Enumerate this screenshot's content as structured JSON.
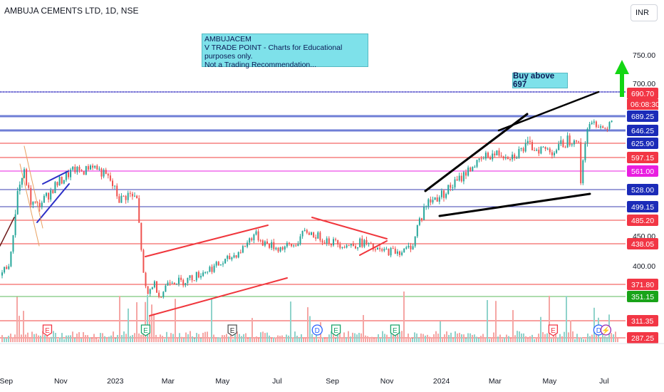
{
  "header": {
    "title": "AMBUJA CEMENTS LTD, 1D, NSE",
    "currency": "INR"
  },
  "annotations": {
    "note_lines": [
      "AMBUJACEM",
      "V TRADE POINT - Charts for Educational purposes only.",
      "Not a Trading Recommendation..."
    ],
    "buy_label": "Buy above 697"
  },
  "chart_data": {
    "type": "candlestick",
    "title": "AMBUJA CEMENTS LTD, 1D, NSE",
    "xlabel": "",
    "ylabel": "",
    "y_scale": "log",
    "ylim": [
      340,
      820
    ],
    "x_range": [
      "2022-08-25",
      "2024-07-25"
    ],
    "x_ticks": [
      {
        "label": "Sep",
        "date": "2022-09-01"
      },
      {
        "label": "Nov",
        "date": "2022-11-01"
      },
      {
        "label": "2023",
        "date": "2023-01-01"
      },
      {
        "label": "Mar",
        "date": "2023-03-01"
      },
      {
        "label": "May",
        "date": "2023-05-01"
      },
      {
        "label": "Jul",
        "date": "2023-07-01"
      },
      {
        "label": "Sep",
        "date": "2023-09-01"
      },
      {
        "label": "Nov",
        "date": "2023-11-01"
      },
      {
        "label": "2024",
        "date": "2024-01-01"
      },
      {
        "label": "Mar",
        "date": "2024-03-01"
      },
      {
        "label": "May",
        "date": "2024-05-01"
      },
      {
        "label": "Jul",
        "date": "2024-07-01"
      }
    ],
    "y_axis_ticks": [
      {
        "label": "750.00",
        "value": 750
      },
      {
        "label": "700.00",
        "value": 700
      },
      {
        "label": "450.00",
        "value": 450
      },
      {
        "label": "400.00",
        "value": 400
      }
    ],
    "horizontal_levels": [
      {
        "value": 690.7,
        "label": "690.70",
        "color": "#f23645",
        "line": "#4b46c8",
        "kind": "last"
      },
      {
        "value": 689.25,
        "label": "689.25",
        "color": "#1b2bb8",
        "line": "#6f7ed6",
        "kind": "level"
      },
      {
        "value": 646.25,
        "label": "646.25",
        "color": "#1b2bb8",
        "line": "#6f7ed6",
        "kind": "level"
      },
      {
        "value": 625.9,
        "label": "625.90",
        "color": "#1b2bb8",
        "line": "#f0403f",
        "kind": "level"
      },
      {
        "value": 597.15,
        "label": "597.15",
        "color": "#f23645",
        "line": "#f0403f",
        "kind": "level"
      },
      {
        "value": 561.0,
        "label": "561.00",
        "color": "#e91ee0",
        "line": "#e91ee0",
        "kind": "level"
      },
      {
        "value": 528.0,
        "label": "528.00",
        "color": "#1b2bb8",
        "line": "#3b3fb0",
        "kind": "level"
      },
      {
        "value": 499.15,
        "label": "499.15",
        "color": "#1b2bb8",
        "line": "#3b3fb0",
        "kind": "level"
      },
      {
        "value": 485.2,
        "label": "485.20",
        "color": "#f23645",
        "line": "#f0403f",
        "kind": "level"
      },
      {
        "value": 438.05,
        "label": "438.05",
        "color": "#f23645",
        "line": "#f0403f",
        "kind": "level"
      },
      {
        "value": 371.8,
        "label": "371.80",
        "color": "#f23645",
        "line": "#f0403f",
        "kind": "level"
      },
      {
        "value": 351.15,
        "label": "351.15",
        "color": "#19a319",
        "line": "#5cb85c",
        "kind": "level"
      },
      {
        "value": 311.35,
        "label": "311.35",
        "color": "#f23645",
        "line": "#f0403f",
        "kind": "level"
      },
      {
        "value": 287.25,
        "label": "287.25",
        "color": "#f23645",
        "line": "#f0403f",
        "kind": "level"
      }
    ],
    "last_price": {
      "value": 690.7,
      "label": "690.70",
      "countdown": "06:08:30"
    },
    "price_path": [
      {
        "date": "2022-08-25",
        "close": 385
      },
      {
        "date": "2022-09-05",
        "close": 410
      },
      {
        "date": "2022-09-12",
        "close": 520
      },
      {
        "date": "2022-09-20",
        "close": 560
      },
      {
        "date": "2022-09-28",
        "close": 505
      },
      {
        "date": "2022-10-05",
        "close": 500
      },
      {
        "date": "2022-10-15",
        "close": 515
      },
      {
        "date": "2022-10-25",
        "close": 535
      },
      {
        "date": "2022-11-05",
        "close": 550
      },
      {
        "date": "2022-11-15",
        "close": 565
      },
      {
        "date": "2022-11-25",
        "close": 560
      },
      {
        "date": "2022-12-05",
        "close": 578
      },
      {
        "date": "2022-12-15",
        "close": 560
      },
      {
        "date": "2022-12-25",
        "close": 545
      },
      {
        "date": "2023-01-05",
        "close": 510
      },
      {
        "date": "2023-01-15",
        "close": 520
      },
      {
        "date": "2023-01-25",
        "close": 510
      },
      {
        "date": "2023-02-01",
        "close": 380
      },
      {
        "date": "2023-02-05",
        "close": 352
      },
      {
        "date": "2023-02-12",
        "close": 375
      },
      {
        "date": "2023-02-20",
        "close": 350
      },
      {
        "date": "2023-03-01",
        "close": 380
      },
      {
        "date": "2023-03-15",
        "close": 375
      },
      {
        "date": "2023-04-01",
        "close": 385
      },
      {
        "date": "2023-04-15",
        "close": 395
      },
      {
        "date": "2023-05-01",
        "close": 405
      },
      {
        "date": "2023-05-20",
        "close": 425
      },
      {
        "date": "2023-06-05",
        "close": 455
      },
      {
        "date": "2023-06-15",
        "close": 440
      },
      {
        "date": "2023-07-01",
        "close": 430
      },
      {
        "date": "2023-07-20",
        "close": 435
      },
      {
        "date": "2023-08-01",
        "close": 460
      },
      {
        "date": "2023-08-15",
        "close": 450
      },
      {
        "date": "2023-09-01",
        "close": 440
      },
      {
        "date": "2023-09-20",
        "close": 435
      },
      {
        "date": "2023-10-05",
        "close": 440
      },
      {
        "date": "2023-10-20",
        "close": 425
      },
      {
        "date": "2023-11-05",
        "close": 425
      },
      {
        "date": "2023-11-20",
        "close": 425
      },
      {
        "date": "2023-12-01",
        "close": 440
      },
      {
        "date": "2023-12-05",
        "close": 480
      },
      {
        "date": "2023-12-15",
        "close": 505
      },
      {
        "date": "2024-01-01",
        "close": 520
      },
      {
        "date": "2024-01-20",
        "close": 545
      },
      {
        "date": "2024-02-05",
        "close": 575
      },
      {
        "date": "2024-02-20",
        "close": 600
      },
      {
        "date": "2024-03-05",
        "close": 605
      },
      {
        "date": "2024-03-20",
        "close": 600
      },
      {
        "date": "2024-04-05",
        "close": 620
      },
      {
        "date": "2024-04-20",
        "close": 615
      },
      {
        "date": "2024-05-05",
        "close": 610
      },
      {
        "date": "2024-05-20",
        "close": 630
      },
      {
        "date": "2024-06-01",
        "close": 640
      },
      {
        "date": "2024-06-04",
        "close": 540
      },
      {
        "date": "2024-06-10",
        "close": 650
      },
      {
        "date": "2024-06-20",
        "close": 670
      },
      {
        "date": "2024-07-01",
        "close": 650
      },
      {
        "date": "2024-07-10",
        "close": 690.7
      }
    ],
    "volume_range": [
      0,
      1
    ]
  },
  "event_markers": [
    {
      "date": "2022-10-17",
      "letter": "E",
      "kind": "earnings-red"
    },
    {
      "date": "2023-02-04",
      "letter": "E",
      "kind": "earnings-green"
    },
    {
      "date": "2023-05-12",
      "letter": "E",
      "kind": "earnings-dark"
    },
    {
      "date": "2023-08-15",
      "letter": "D",
      "kind": "dividend"
    },
    {
      "date": "2023-09-05",
      "letter": "E",
      "kind": "earnings-green"
    },
    {
      "date": "2023-11-10",
      "letter": "E",
      "kind": "earnings-green"
    },
    {
      "date": "2024-05-05",
      "letter": "E",
      "kind": "earnings-red"
    },
    {
      "date": "2024-06-25",
      "letter": "D",
      "kind": "dividend"
    },
    {
      "date": "2024-07-03",
      "letter": "⚡",
      "kind": "split"
    }
  ],
  "colors": {
    "up": "#26a69a",
    "down": "#ef5350",
    "trend_red": "#f0363c",
    "trend_black": "#000000",
    "trend_blue": "#2b2fc7",
    "arrow": "#13d613",
    "axis_text": "#131722"
  }
}
